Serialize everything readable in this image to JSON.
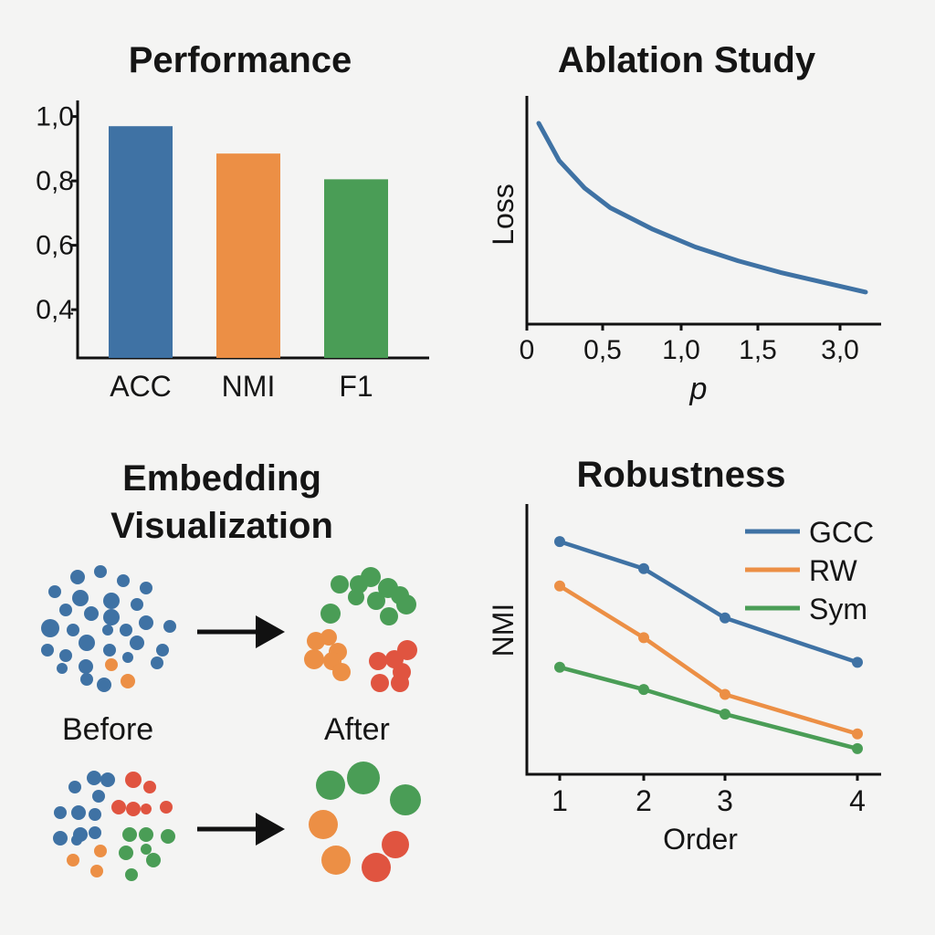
{
  "colors": {
    "blue": "#3f72a4",
    "orange": "#ec8f45",
    "green": "#4a9d56",
    "red": "#e05440",
    "axis": "#111111"
  },
  "chart_data": [
    {
      "type": "bar",
      "title": "Performance",
      "categories": [
        "ACC",
        "NMI",
        "F1"
      ],
      "values": [
        0.97,
        0.885,
        0.805
      ],
      "ylim": [
        0.25,
        1.05
      ],
      "yticks": [
        "0,4",
        "0,6",
        "0,8",
        "1,0"
      ],
      "ytick_values": [
        0.4,
        0.6,
        0.8,
        1.0
      ],
      "bar_colors": [
        "#3f72a4",
        "#ec8f45",
        "#4a9d56"
      ],
      "xlabel": "",
      "ylabel": ""
    },
    {
      "type": "line",
      "title": "Ablation Study",
      "xlabel": "p",
      "ylabel": "Loss",
      "xticks": [
        "0",
        "0,5",
        "1,0",
        "1,5",
        "3,0"
      ],
      "x": [
        0.08,
        0.2,
        0.35,
        0.5,
        0.75,
        1.0,
        1.25,
        1.5,
        1.75,
        2.0
      ],
      "y": [
        0.93,
        0.74,
        0.6,
        0.5,
        0.39,
        0.3,
        0.23,
        0.17,
        0.12,
        0.07
      ],
      "color": "#3f72a4"
    },
    {
      "type": "scatter",
      "title_lines": [
        "Embedding",
        "Visualization"
      ],
      "labels": {
        "before": "Before",
        "after": "After"
      }
    },
    {
      "type": "line",
      "title": "Robustness",
      "xlabel": "Order",
      "ylabel": "NMI",
      "categories": [
        "1",
        "2",
        "3",
        "4"
      ],
      "ylim": [
        0,
        1
      ],
      "series": [
        {
          "name": "GCC",
          "color": "#3f72a4",
          "values": [
            0.87,
            0.76,
            0.56,
            0.38
          ]
        },
        {
          "name": "RW",
          "color": "#ec8f45",
          "values": [
            0.69,
            0.48,
            0.25,
            0.09
          ]
        },
        {
          "name": "Sym",
          "color": "#4a9d56",
          "values": [
            0.36,
            0.27,
            0.17,
            0.03
          ]
        }
      ],
      "legend_position": "top-right"
    }
  ]
}
